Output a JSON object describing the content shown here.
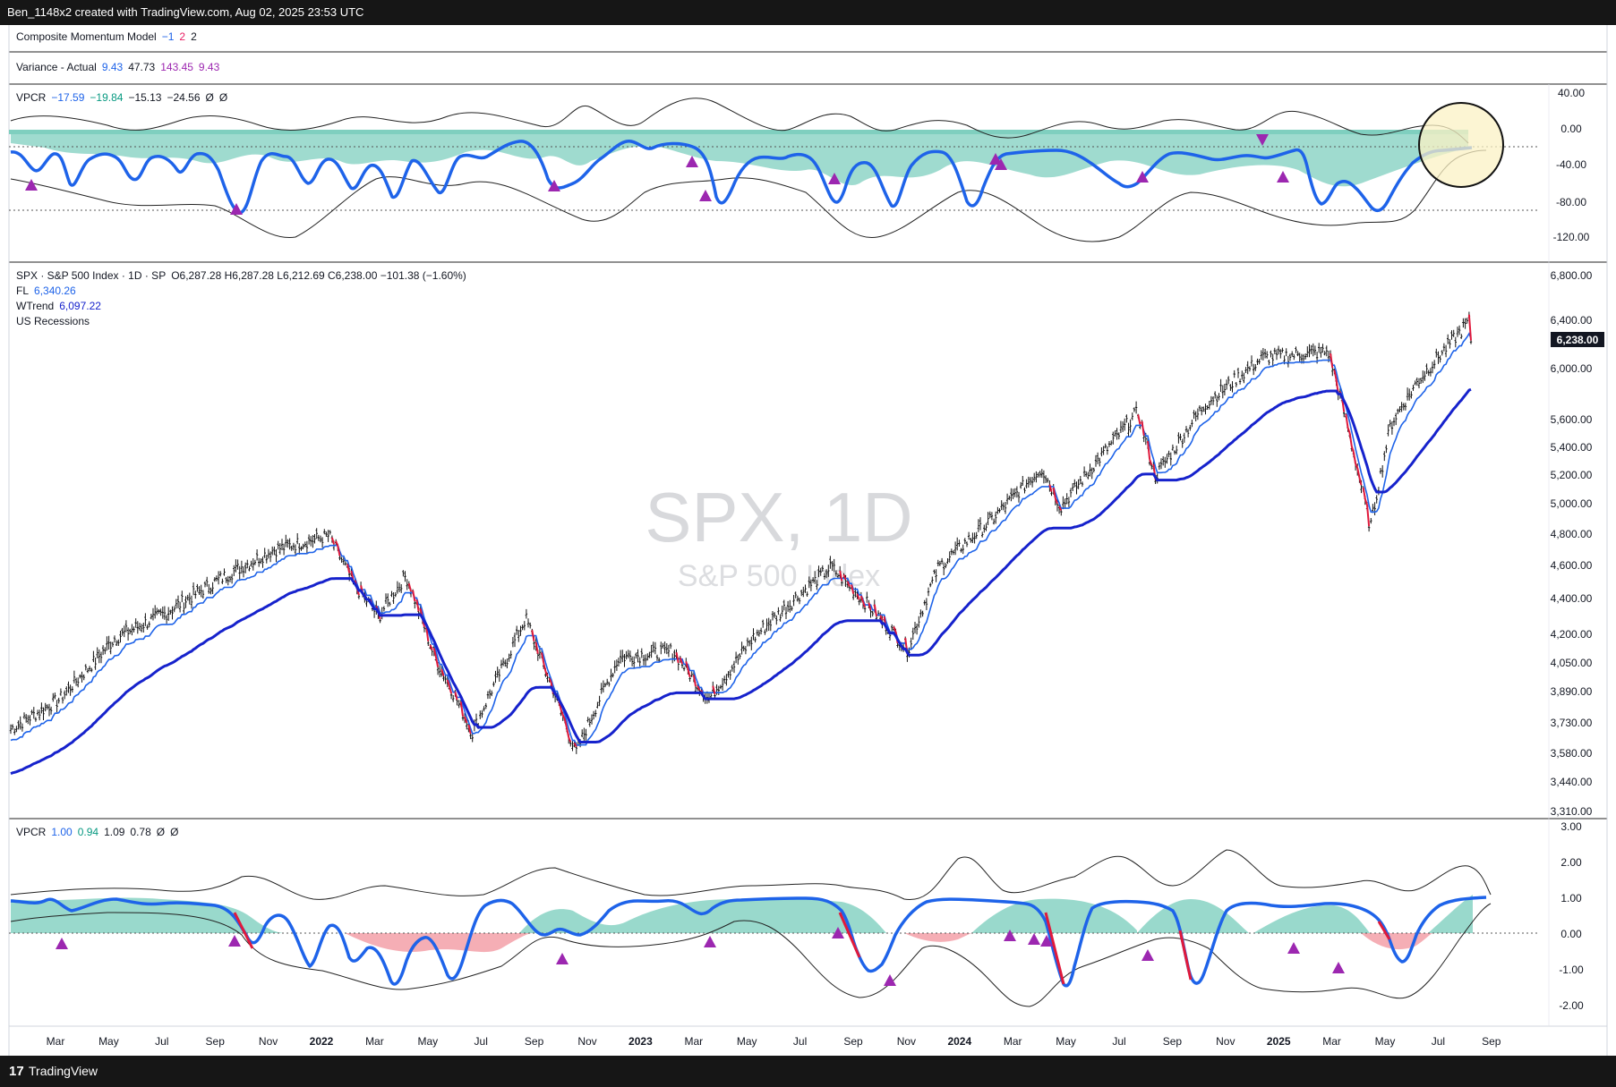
{
  "header": {
    "title": "Ben_1148x2 created with TradingView.com, Aug 02, 2025 23:53 UTC"
  },
  "footer": {
    "logo_glyph": "17",
    "brand": "TradingView"
  },
  "composite": {
    "name": "Composite Momentum Model",
    "v1": "−1",
    "v2": "2",
    "v3": "2"
  },
  "variance": {
    "name": "Variance - Actual",
    "v1": "9.43",
    "v2": "47.73",
    "v3": "143.45",
    "v4": "9.43"
  },
  "vpcr_top": {
    "name": "VPCR",
    "v1": "−17.59",
    "v2": "−19.84",
    "v3": "−15.13",
    "v4": "−24.56",
    "v5": "Ø",
    "v6": "Ø"
  },
  "spx": {
    "title": "SPX · S&P 500 Index · 1D · SP",
    "ohlc": "O6,287.28  H6,287.28  L6,212.69  C6,238.00  −101.38 (−1.60%)",
    "fl_label": "FL",
    "fl_value": "6,340.26",
    "wtrend_label": "WTrend",
    "wtrend_value": "6,097.22",
    "recessions_label": "US Recessions",
    "watermark_main": "SPX, 1D",
    "watermark_sub": "S&P 500 Index",
    "last_price": "6,238.00"
  },
  "vpcr_bottom": {
    "name": "VPCR",
    "v1": "1.00",
    "v2": "0.94",
    "v3": "1.09",
    "v4": "0.78",
    "v5": "Ø",
    "v6": "Ø"
  },
  "colors": {
    "price_line": "#1e63e9",
    "wtrend": "#1622cc",
    "down": "#e0193b",
    "teal_fill": "#7fcfbf",
    "red_fill": "#f3a0a8",
    "marker": "#9c27b0",
    "highlight": "#fbf2c4"
  },
  "chart_data": [
    {
      "type": "line",
      "panel": "VPCR top",
      "y_ticks": [
        "40.00",
        "0.00",
        "-40.00",
        "-80.00",
        "-120.00"
      ],
      "ylim": [
        -135,
        50
      ],
      "series": [
        {
          "name": "VPCR",
          "x": [
            "Jan 2021",
            "Apr 2021",
            "Jul 2021",
            "Oct 2021",
            "Jan 2022",
            "Apr 2022",
            "Jul 2022",
            "Oct 2022",
            "Jan 2023",
            "Apr 2023",
            "Jul 2023",
            "Oct 2023",
            "Jan 2024",
            "Apr 2024",
            "Jul 2024",
            "Oct 2024",
            "Jan 2025",
            "Apr 2025",
            "Jul 2025"
          ],
          "values": [
            -25,
            -40,
            -30,
            -90,
            -40,
            -55,
            -35,
            -75,
            -15,
            -80,
            -30,
            -85,
            -20,
            -95,
            -20,
            -35,
            -20,
            -90,
            -18
          ]
        }
      ]
    },
    {
      "type": "line",
      "panel": "SPX price",
      "y_ticks": [
        "6,800.00",
        "6,400.00",
        "6,000.00",
        "5,600.00",
        "5,400.00",
        "5,200.00",
        "5,000.00",
        "4,800.00",
        "4,600.00",
        "4,400.00",
        "4,200.00",
        "4,050.00",
        "3,890.00",
        "3,730.00",
        "3,580.00",
        "3,440.00",
        "3,310.00"
      ],
      "x_ticks": [
        "Mar",
        "May",
        "Jul",
        "Sep",
        "Nov",
        "2022",
        "Mar",
        "May",
        "Jul",
        "Sep",
        "Nov",
        "2023",
        "Mar",
        "May",
        "Jul",
        "Sep",
        "Nov",
        "2024",
        "Mar",
        "May",
        "Jul",
        "Sep",
        "Nov",
        "2025",
        "Mar",
        "May",
        "Jul",
        "Sep"
      ],
      "ylim": [
        3310,
        6800
      ],
      "series": [
        {
          "name": "SPX",
          "x": [
            "2021-01-04",
            "2021-03-01",
            "2021-05-03",
            "2021-07-01",
            "2021-09-01",
            "2021-11-01",
            "2022-01-03",
            "2022-02-01",
            "2022-03-01",
            "2022-04-01",
            "2022-05-02",
            "2022-06-16",
            "2022-08-16",
            "2022-10-12",
            "2022-12-01",
            "2023-02-01",
            "2023-03-13",
            "2023-05-01",
            "2023-07-31",
            "2023-10-27",
            "2023-12-01",
            "2024-02-01",
            "2024-03-28",
            "2024-04-19",
            "2024-07-16",
            "2024-08-05",
            "2024-10-01",
            "2024-12-06",
            "2025-02-19",
            "2025-04-08",
            "2025-05-01",
            "2025-06-01",
            "2025-07-31",
            "2025-08-01"
          ],
          "values": [
            3700,
            3850,
            4180,
            4320,
            4520,
            4700,
            4790,
            4480,
            4300,
            4540,
            4100,
            3680,
            4290,
            3580,
            4080,
            4110,
            3850,
            4170,
            4590,
            4120,
            4590,
            4900,
            5250,
            4980,
            5660,
            5190,
            5720,
            6090,
            6140,
            4840,
            5560,
            5900,
            6400,
            6238
          ]
        },
        {
          "name": "FL",
          "values": []
        },
        {
          "name": "WTrend",
          "values": []
        }
      ]
    },
    {
      "type": "line",
      "panel": "VPCR bottom",
      "y_ticks": [
        "3.00",
        "2.00",
        "1.00",
        "0.00",
        "-1.00",
        "-2.00"
      ],
      "ylim": [
        -2.3,
        3.0
      ],
      "series": [
        {
          "name": "VPCR",
          "x": [
            "Jan 2021",
            "Apr 2021",
            "Jul 2021",
            "Oct 2021",
            "Jan 2022",
            "Apr 2022",
            "Jul 2022",
            "Oct 2022",
            "Jan 2023",
            "Apr 2023",
            "Jul 2023",
            "Oct 2023",
            "Jan 2024",
            "Apr 2024",
            "Jul 2024",
            "Oct 2024",
            "Jan 2025",
            "Apr 2025",
            "Jul 2025"
          ],
          "values": [
            0.9,
            0.7,
            0.95,
            -0.4,
            0.3,
            -1.6,
            -0.5,
            -1.2,
            0.8,
            -0.2,
            1.0,
            -1.1,
            0.95,
            -1.4,
            1.0,
            -1.9,
            1.0,
            -1.1,
            1.0
          ]
        }
      ]
    }
  ]
}
